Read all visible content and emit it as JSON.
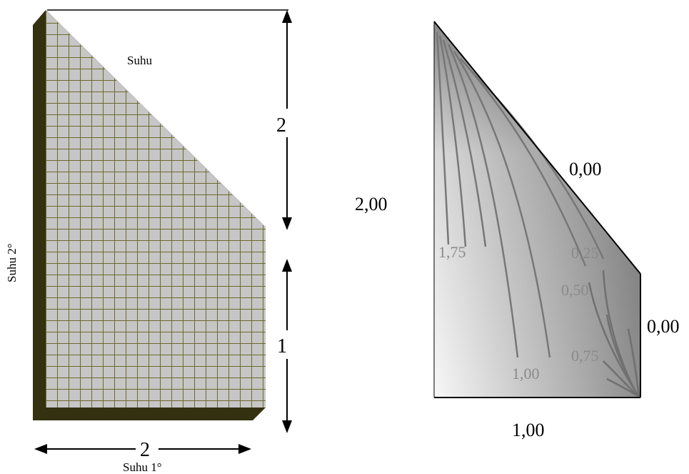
{
  "left_figure": {
    "top_label": "Suhu",
    "side_label": "Suhu 2°",
    "bottom_label": "Suhu 1°",
    "dim_top_right": "2",
    "dim_bottom_right": "1",
    "dim_bottom": "2",
    "colors": {
      "mesh_fill": "#c6c6c6",
      "mesh_line": "#6b6a2e",
      "edge_dark": "#33310f"
    }
  },
  "right_figure": {
    "left_boundary": "2,00",
    "top_boundary": "0,00",
    "right_boundary": "0,00",
    "bottom_boundary": "1,00",
    "contours": [
      {
        "label": "1,75"
      },
      {
        "label": "0,25"
      },
      {
        "label": "0,50"
      },
      {
        "label": "0,75"
      },
      {
        "label": "1,00"
      },
      {
        "label": "0,75"
      }
    ]
  }
}
